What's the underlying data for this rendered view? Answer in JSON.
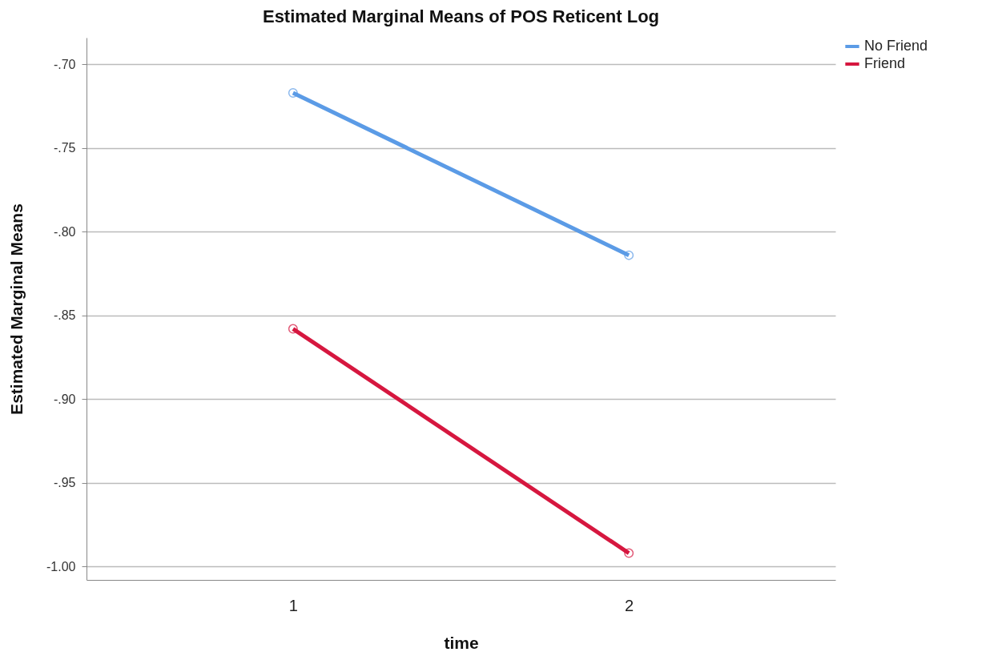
{
  "chart_data": {
    "type": "line",
    "title": "Estimated Marginal Means of POS Reticent Log",
    "xlabel": "time",
    "ylabel": "Estimated Marginal Means",
    "categories": [
      "1",
      "2"
    ],
    "series": [
      {
        "name": "No Friend",
        "color": "#5b9be6",
        "values": [
          -0.717,
          -0.814
        ]
      },
      {
        "name": "Friend",
        "color": "#d6173f",
        "values": [
          -0.858,
          -0.992
        ]
      }
    ],
    "ylim": [
      -1.008,
      -0.684
    ],
    "yticks": [
      {
        "value": -0.7,
        "label": "-.70"
      },
      {
        "value": -0.75,
        "label": "-.75"
      },
      {
        "value": -0.8,
        "label": "-.80"
      },
      {
        "value": -0.85,
        "label": "-.85"
      },
      {
        "value": -0.9,
        "label": "-.90"
      },
      {
        "value": -0.95,
        "label": "-.95"
      },
      {
        "value": -1.0,
        "label": "-1.00"
      }
    ],
    "grid": "y",
    "legend": "top right",
    "marker": "circle",
    "line_style": "solid"
  }
}
